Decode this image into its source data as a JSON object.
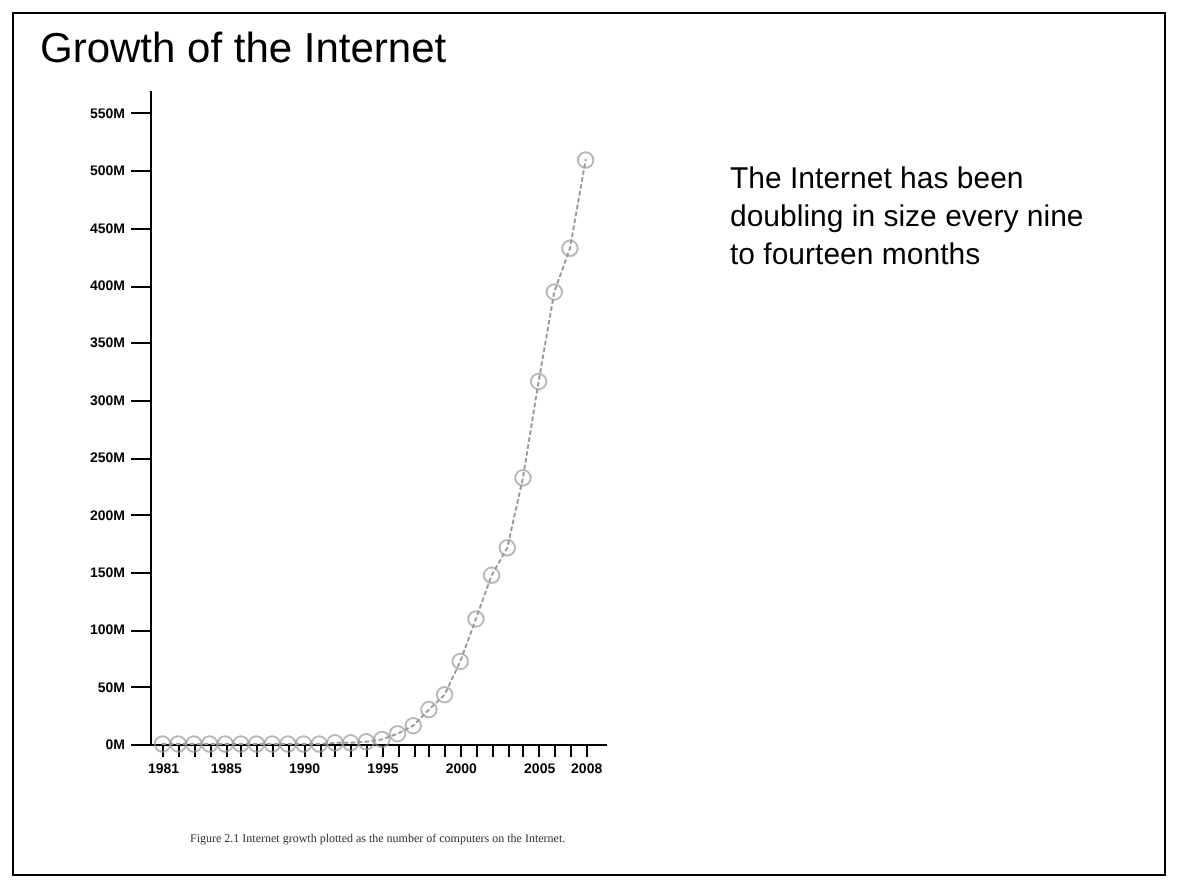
{
  "chart_data": {
    "type": "line",
    "title": "Growth of the Internet",
    "annotations": [
      "The Internet has been doubling in size every nine to fourteen months",
      "Figure 2.1 Internet growth plotted as the number of computers on the Internet."
    ],
    "x": [
      1981,
      1982,
      1983,
      1984,
      1985,
      1986,
      1987,
      1988,
      1989,
      1990,
      1991,
      1992,
      1993,
      1994,
      1995,
      1996,
      1997,
      1998,
      1999,
      2000,
      2001,
      2002,
      2003,
      2004,
      2005,
      2006,
      2007,
      2008
    ],
    "series": [
      {
        "color": "#999999",
        "values": [
          0,
          0,
          0,
          0,
          0,
          0,
          0,
          0,
          0,
          0,
          0,
          1,
          1,
          2,
          4,
          9,
          16,
          30,
          43,
          72,
          109,
          147,
          171,
          232,
          316,
          394,
          432,
          509
        ]
      }
    ],
    "xlim": [
      1980.2,
      2009.3
    ],
    "ylim": [
      0,
      570
    ],
    "xticks": [
      1981,
      {
        "value": 1982,
        "label": null
      },
      {
        "value": 1983,
        "label": null
      },
      {
        "value": 1984,
        "label": null
      },
      1985,
      {
        "value": 1986,
        "label": null
      },
      {
        "value": 1987,
        "label": null
      },
      {
        "value": 1988,
        "label": null
      },
      {
        "value": 1989,
        "label": null
      },
      1990,
      {
        "value": 1991,
        "label": null
      },
      {
        "value": 1992,
        "label": null
      },
      {
        "value": 1993,
        "label": null
      },
      {
        "value": 1994,
        "label": null
      },
      1995,
      {
        "value": 1996,
        "label": null
      },
      {
        "value": 1997,
        "label": null
      },
      {
        "value": 1998,
        "label": null
      },
      {
        "value": 1999,
        "label": null
      },
      2000,
      {
        "value": 2001,
        "label": null
      },
      {
        "value": 2002,
        "label": null
      },
      {
        "value": 2003,
        "label": null
      },
      {
        "value": 2004,
        "label": null
      },
      2005,
      {
        "value": 2006,
        "label": null
      },
      {
        "value": 2007,
        "label": null
      },
      2008
    ],
    "yticks": [
      {
        "value": 0,
        "label": "0M"
      },
      {
        "value": 50,
        "label": "50M"
      },
      {
        "value": 100,
        "label": "100M"
      },
      {
        "value": 150,
        "label": "150M"
      },
      {
        "value": 200,
        "label": "200M"
      },
      {
        "value": 250,
        "label": "250M"
      },
      {
        "value": 300,
        "label": "300M"
      },
      {
        "value": 350,
        "label": "350M"
      },
      {
        "value": 400,
        "label": "400M"
      },
      {
        "value": 450,
        "label": "450M"
      },
      {
        "value": 500,
        "label": "500M"
      },
      {
        "value": 550,
        "label": "550M"
      }
    ],
    "grid": false,
    "legend": false,
    "marker": "circle",
    "line_style": "dotted"
  }
}
